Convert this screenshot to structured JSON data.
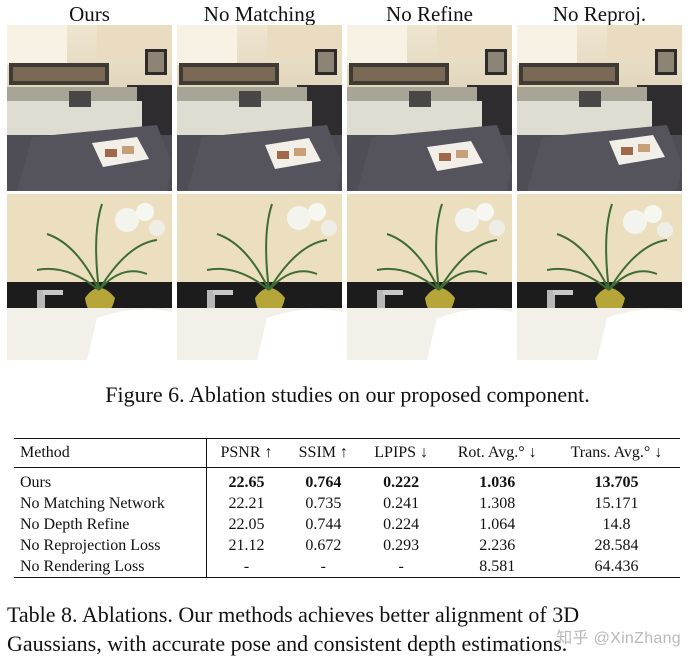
{
  "figure": {
    "columns": [
      "Ours",
      "No Matching",
      "No Refine",
      "No Reproj."
    ],
    "rows": [
      "living-room",
      "sink-plant"
    ],
    "caption": "Figure 6. Ablation studies on our proposed component."
  },
  "table": {
    "headers": [
      "Method",
      "PSNR ↑",
      "SSIM ↑",
      "LPIPS ↓",
      "Rot. Avg.° ↓",
      "Trans. Avg.° ↓"
    ],
    "rows": [
      [
        "Ours",
        "22.65",
        "0.764",
        "0.222",
        "1.036",
        "13.705"
      ],
      [
        "No Matching Network",
        "22.21",
        "0.735",
        "0.241",
        "1.308",
        "15.171"
      ],
      [
        "No Depth Refine",
        "22.05",
        "0.744",
        "0.224",
        "1.064",
        "14.8"
      ],
      [
        "No Reprojection Loss",
        "21.12",
        "0.672",
        "0.293",
        "2.236",
        "28.584"
      ],
      [
        "No Rendering Loss",
        "-",
        "-",
        "-",
        "8.581",
        "64.436"
      ]
    ],
    "caption_line1": "Table 8. Ablations. Our methods achieves better alignment of 3D",
    "caption_line2": "Gaussians, with accurate pose and consistent depth estimations."
  },
  "watermark": "知乎 @XinZhang"
}
